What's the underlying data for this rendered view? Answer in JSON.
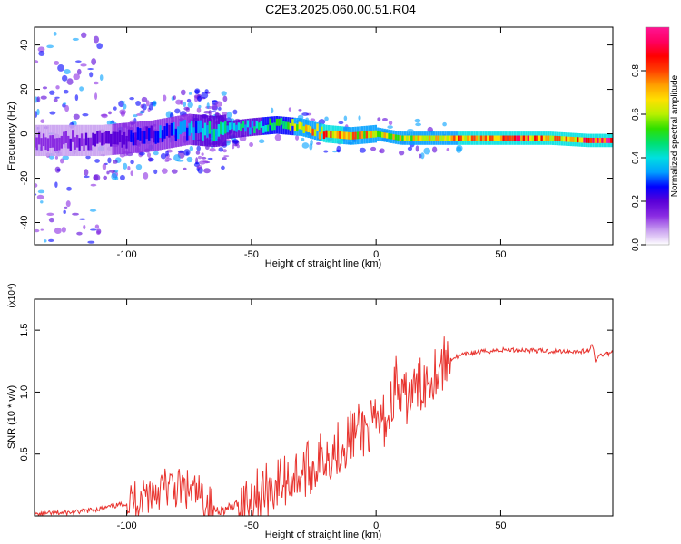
{
  "figure": {
    "title": "C2E3.2025.060.00.51.R04"
  },
  "chart_data": [
    {
      "type": "heatmap",
      "title": "C2E3.2025.060.00.51.R04",
      "xlabel": "Height of straight line (km)",
      "ylabel": "Frequency (Hz)",
      "xlim": [
        -137,
        95
      ],
      "ylim": [
        -50,
        48
      ],
      "x_ticks": [
        -100,
        -50,
        0,
        50
      ],
      "y_ticks": [
        -40,
        -20,
        0,
        20,
        40
      ],
      "colorbar": {
        "label": "Normalized spectral amplitude",
        "range": [
          0,
          1
        ],
        "ticks": [
          "0.0",
          "0.2",
          "0.4",
          "0.6",
          "0.8"
        ],
        "colors": [
          "#ffffff",
          "#c9a0f0",
          "#8a2be2",
          "#5a00d8",
          "#0000ff",
          "#00a0ff",
          "#00e0e0",
          "#00e070",
          "#2ee000",
          "#b8f000",
          "#ffe000",
          "#ffa000",
          "#ff4000",
          "#ff0000",
          "#ff0060",
          "#ff1493"
        ]
      },
      "grid": false,
      "ridge": {
        "description_points_x": [
          -130,
          -110,
          -90,
          -75,
          -65,
          -50,
          -40,
          -30,
          -20,
          -10,
          0,
          10,
          30,
          50,
          70,
          85,
          92
        ],
        "description_points_y": [
          -3,
          -3,
          -1,
          2,
          1,
          3,
          4,
          3,
          0,
          -1,
          0,
          -2,
          -2,
          -2,
          -2,
          -3,
          -3
        ],
        "amplitude": [
          0.15,
          0.2,
          0.3,
          0.35,
          0.5,
          0.45,
          0.6,
          0.7,
          0.85,
          0.8,
          0.75,
          0.7,
          0.8,
          0.9,
          0.85,
          0.9,
          0.95
        ]
      }
    },
    {
      "type": "line",
      "xlabel": "Height of straight line (km)",
      "ylabel": "SNR (10 * v/v)",
      "y_multiplier": "(x10⁴)",
      "xlim": [
        -137,
        95
      ],
      "ylim": [
        0,
        1.75
      ],
      "x_ticks": [
        -100,
        -50,
        0,
        50
      ],
      "y_ticks": [
        0.5,
        1.0,
        1.5
      ],
      "color": "#e8342f",
      "grid": false,
      "series": [
        {
          "x": [
            -137,
            -130,
            -120,
            -110,
            -100,
            -95,
            -90,
            -85,
            -80,
            -75,
            -70,
            -65,
            -60,
            -55,
            -50,
            -45,
            -40,
            -35,
            -30,
            -25,
            -20,
            -15,
            -10,
            -5,
            0,
            5,
            8,
            10,
            12,
            15,
            20,
            25,
            30,
            35,
            40,
            45,
            50,
            60,
            70,
            80,
            85,
            87,
            88,
            90,
            95
          ],
          "y": [
            0.01,
            0.02,
            0.03,
            0.06,
            0.1,
            0.15,
            0.2,
            0.23,
            0.22,
            0.2,
            0.15,
            0.05,
            0.05,
            0.1,
            0.15,
            0.2,
            0.25,
            0.3,
            0.35,
            0.4,
            0.5,
            0.55,
            0.65,
            0.7,
            0.72,
            0.8,
            1.1,
            0.9,
            0.95,
            1.0,
            1.1,
            1.2,
            1.27,
            1.3,
            1.32,
            1.33,
            1.34,
            1.34,
            1.33,
            1.33,
            1.33,
            1.38,
            1.25,
            1.3,
            1.32
          ]
        }
      ]
    }
  ]
}
